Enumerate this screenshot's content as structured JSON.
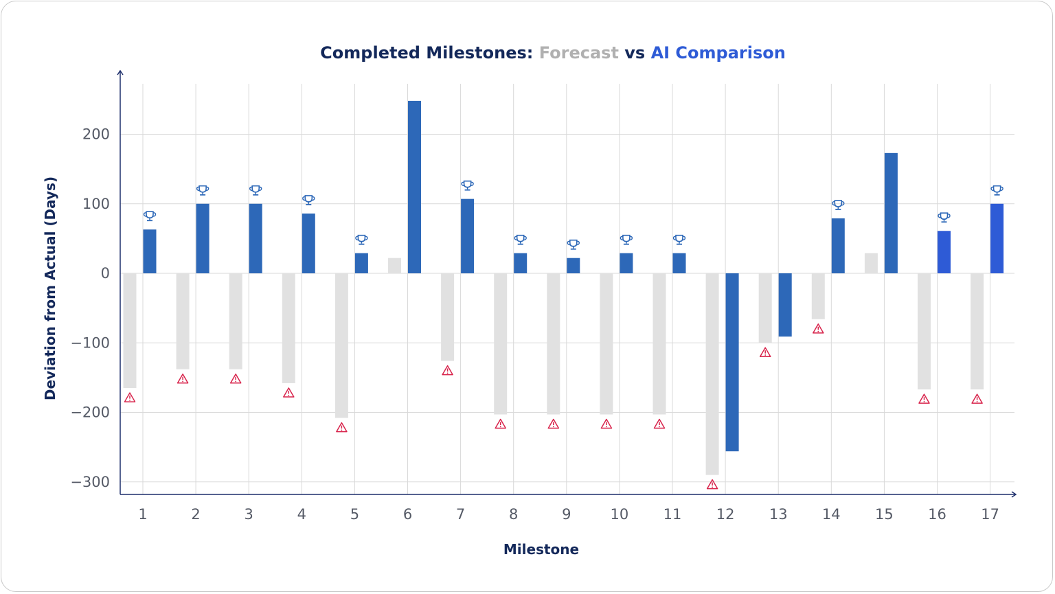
{
  "chart_data": {
    "type": "bar",
    "title": {
      "part1": "Completed Milestones: ",
      "part2": "Forecast",
      "part3": " vs ",
      "part4": "AI Comparison"
    },
    "xlabel": "Milestone",
    "ylabel": "Deviation from Actual (Days)",
    "categories": [
      "1",
      "2",
      "3",
      "4",
      "5",
      "6",
      "7",
      "8",
      "9",
      "10",
      "11",
      "12",
      "13",
      "14",
      "15",
      "16",
      "17"
    ],
    "series": [
      {
        "name": "Forecast",
        "color": "#e1e1e1",
        "values": [
          -165,
          -138,
          -138,
          -158,
          -208,
          22,
          -126,
          -203,
          -203,
          -203,
          -203,
          -290,
          -100,
          -66,
          29,
          -167,
          -167
        ]
      },
      {
        "name": "AI Comparison",
        "color": "#2d68b8",
        "values": [
          63,
          100,
          100,
          86,
          29,
          248,
          107,
          29,
          22,
          29,
          29,
          -256,
          -91,
          79,
          173,
          61,
          100
        ]
      }
    ],
    "highlight_colors": {
      "16": "#2e5bd6",
      "17": "#2e5bd6"
    },
    "ylim": [
      -320,
      275
    ],
    "yticks": [
      -300,
      -200,
      -100,
      0,
      100,
      200
    ],
    "grid": true,
    "markers": {
      "trophy_icon": "trophy-icon",
      "warning_icon": "warning-icon",
      "trophy_color": "#2d68b8",
      "warning_color": "#d8234b"
    },
    "colors": {
      "title_dark": "#13285a",
      "title_forecast": "#b0b0b0",
      "title_ai": "#2e5bd6",
      "axis": "#1d2e6b",
      "grid": "#d9d9d9"
    }
  }
}
